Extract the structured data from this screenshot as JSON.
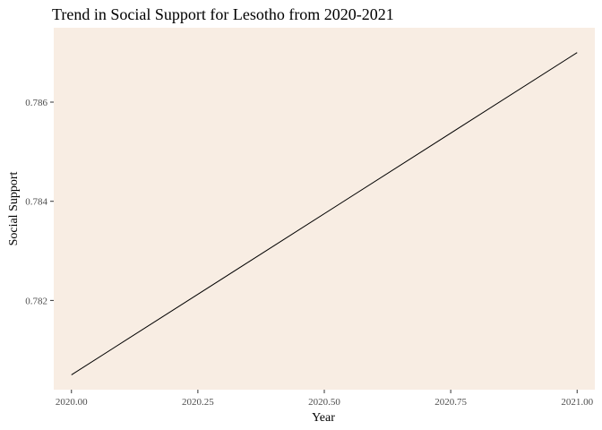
{
  "chart_data": {
    "type": "line",
    "title": "Trend in Social Support for Lesotho from 2020-2021",
    "xlabel": "Year",
    "ylabel": "Social Support",
    "x_ticks": [
      "2020.00",
      "2020.25",
      "2020.50",
      "2020.75",
      "2021.00"
    ],
    "y_ticks": [
      "0.782",
      "0.784",
      "0.786"
    ],
    "xlim": [
      1975.0,
      2021.05
    ],
    "ylim": [
      0.7802,
      0.7875
    ],
    "series": [
      {
        "x": [
          2020,
          2021
        ],
        "y": [
          0.7805,
          0.787
        ],
        "color": "#000000"
      }
    ],
    "panel_background": "#f8ede3",
    "grid": false
  }
}
